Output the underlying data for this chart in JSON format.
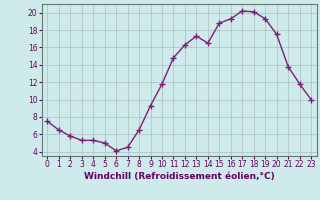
{
  "x": [
    0,
    1,
    2,
    3,
    4,
    5,
    6,
    7,
    8,
    9,
    10,
    11,
    12,
    13,
    14,
    15,
    16,
    17,
    18,
    19,
    20,
    21,
    22,
    23
  ],
  "y": [
    7.5,
    6.5,
    5.8,
    5.3,
    5.3,
    5.0,
    4.1,
    4.5,
    6.5,
    9.3,
    11.8,
    14.8,
    16.3,
    17.3,
    16.5,
    18.8,
    19.3,
    20.2,
    20.1,
    19.3,
    17.5,
    13.8,
    11.8,
    10.0
  ],
  "line_color": "#7B1F7B",
  "marker": "+",
  "marker_size": 4,
  "bg_color": "#ceeaea",
  "grid_color": "#aabfbf",
  "xlabel": "Windchill (Refroidissement éolien,°C)",
  "xlim_min": -0.5,
  "xlim_max": 23.5,
  "ylim_min": 3.5,
  "ylim_max": 21.0,
  "yticks": [
    4,
    6,
    8,
    10,
    12,
    14,
    16,
    18,
    20
  ],
  "xticks": [
    0,
    1,
    2,
    3,
    4,
    5,
    6,
    7,
    8,
    9,
    10,
    11,
    12,
    13,
    14,
    15,
    16,
    17,
    18,
    19,
    20,
    21,
    22,
    23
  ],
  "label_color": "#660066",
  "tick_color": "#660066",
  "xlabel_fontsize": 6.5,
  "tick_fontsize": 5.5,
  "linewidth": 1.0,
  "marker_linewidth": 1.0
}
